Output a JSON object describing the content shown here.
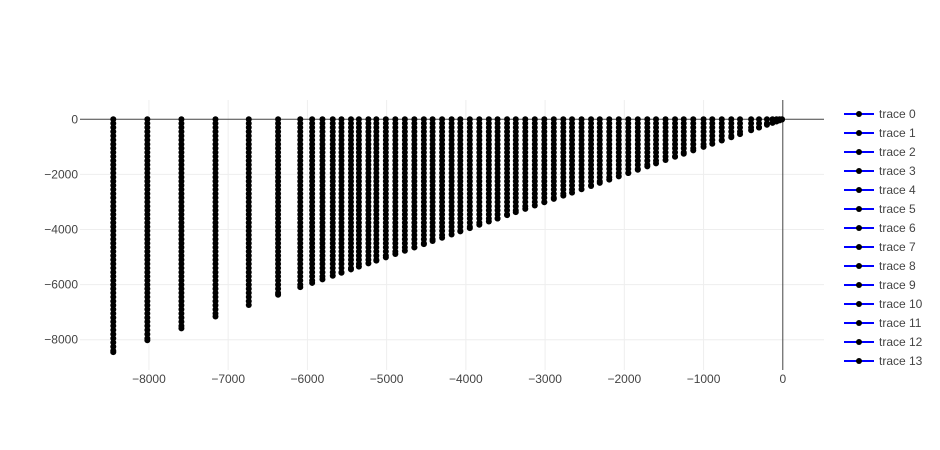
{
  "chart_data": {
    "type": "scatter",
    "mode": "lines+markers",
    "x_range": [
      -8870,
      520
    ],
    "y_range": [
      -9100,
      700
    ],
    "x_ticks": [
      -8000,
      -7000,
      -6000,
      -5000,
      -4000,
      -3000,
      -2000,
      -1000,
      0
    ],
    "x_tick_labels": [
      "−8000",
      "−7000",
      "−6000",
      "−5000",
      "−4000",
      "−3000",
      "−2000",
      "−1000",
      "0"
    ],
    "y_ticks": [
      0,
      -2000,
      -4000,
      -6000,
      -8000
    ],
    "y_tick_labels": [
      "0",
      "−2000",
      "−4000",
      "−6000",
      "−8000"
    ],
    "grid": true,
    "legend_position": "right",
    "line_color": "#0000ff",
    "marker_color": "#000000",
    "zero_line_color": "#444444",
    "column_x": [
      -8450,
      -8020,
      -7590,
      -7160,
      -6740,
      -6370,
      -6090,
      -5940,
      -5810,
      -5680,
      -5570,
      -5450,
      -5350,
      -5230,
      -5130,
      -5010,
      -4890,
      -4770,
      -4650,
      -4530,
      -4420,
      -4300,
      -4180,
      -4070,
      -3950,
      -3830,
      -3710,
      -3600,
      -3480,
      -3370,
      -3250,
      -3130,
      -3010,
      -2890,
      -2770,
      -2660,
      -2540,
      -2420,
      -2310,
      -2190,
      -2070,
      -1950,
      -1830,
      -1710,
      -1600,
      -1480,
      -1360,
      -1250,
      -1130,
      -1000,
      -890,
      -770,
      -650,
      -540,
      -400,
      -300,
      -200,
      -130,
      -80,
      -40,
      -10
    ],
    "series": [
      {
        "name": "trace 0"
      },
      {
        "name": "trace 1"
      },
      {
        "name": "trace 2"
      },
      {
        "name": "trace 3"
      },
      {
        "name": "trace 4"
      },
      {
        "name": "trace 5"
      },
      {
        "name": "trace 6"
      },
      {
        "name": "trace 7"
      },
      {
        "name": "trace 8"
      },
      {
        "name": "trace 9"
      },
      {
        "name": "trace 10"
      },
      {
        "name": "trace 11"
      },
      {
        "name": "trace 12"
      },
      {
        "name": "trace 13"
      }
    ]
  }
}
